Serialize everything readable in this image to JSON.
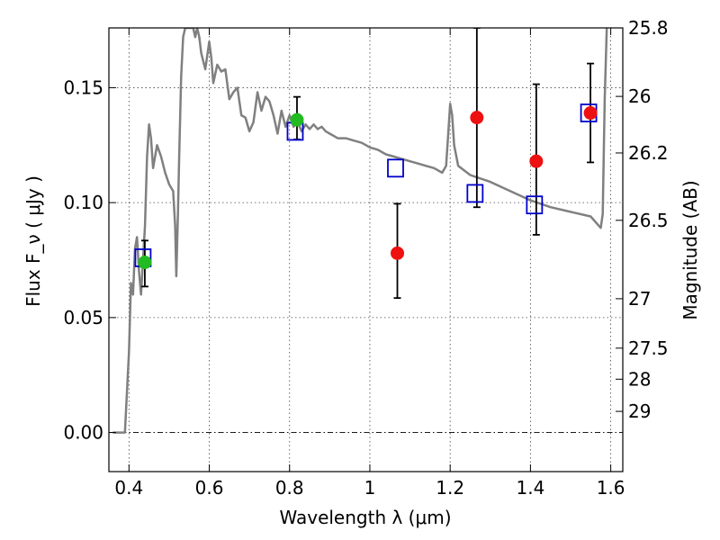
{
  "chart_data": {
    "type": "scatter",
    "xlabel": "Wavelength  λ (μm)",
    "ylabel": "Flux  F_ν  ( μJy )",
    "ylabel_right": "Magnitude (AB)",
    "xlim": [
      0.35,
      1.63
    ],
    "ylim": [
      -0.017,
      0.176
    ],
    "grid": true,
    "legend": "none",
    "x_ticks": [
      0.4,
      0.6,
      0.8,
      1.0,
      1.2,
      1.4,
      1.6
    ],
    "x_tick_labels": [
      "0.4",
      "0.6",
      "0.8",
      "1",
      "1.2",
      "1.4",
      "1.6"
    ],
    "y_ticks": [
      0.0,
      0.05,
      0.1,
      0.15
    ],
    "y_tick_labels": [
      "0.00",
      "0.05",
      "0.10",
      "0.15"
    ],
    "right_ticks": [
      {
        "label": "25.8",
        "flux": 0.176
      },
      {
        "label": "26",
        "flux": 0.1462
      },
      {
        "label": "26.2",
        "flux": 0.1216
      },
      {
        "label": "26.5",
        "flux": 0.0923
      },
      {
        "label": "27",
        "flux": 0.0582
      },
      {
        "label": "27.5",
        "flux": 0.0367
      },
      {
        "label": "28",
        "flux": 0.0232
      },
      {
        "label": "29",
        "flux": 0.0092
      }
    ],
    "series": [
      {
        "kind": "model_sed",
        "color": "#808080",
        "x": [
          0.36,
          0.39,
          0.4,
          0.405,
          0.41,
          0.415,
          0.42,
          0.425,
          0.43,
          0.435,
          0.44,
          0.445,
          0.45,
          0.455,
          0.46,
          0.465,
          0.47,
          0.48,
          0.49,
          0.5,
          0.51,
          0.515,
          0.518,
          0.522,
          0.525,
          0.53,
          0.535,
          0.54,
          0.55,
          0.56,
          0.565,
          0.57,
          0.575,
          0.58,
          0.59,
          0.6,
          0.605,
          0.61,
          0.62,
          0.63,
          0.64,
          0.65,
          0.66,
          0.67,
          0.68,
          0.69,
          0.7,
          0.71,
          0.72,
          0.73,
          0.74,
          0.75,
          0.76,
          0.77,
          0.78,
          0.79,
          0.8,
          0.81,
          0.82,
          0.83,
          0.84,
          0.85,
          0.86,
          0.87,
          0.88,
          0.89,
          0.9,
          0.92,
          0.94,
          0.96,
          0.98,
          1.0,
          1.02,
          1.04,
          1.06,
          1.08,
          1.1,
          1.12,
          1.14,
          1.16,
          1.18,
          1.19,
          1.2,
          1.205,
          1.21,
          1.22,
          1.25,
          1.3,
          1.35,
          1.4,
          1.45,
          1.5,
          1.55,
          1.57,
          1.575,
          1.58,
          1.585,
          1.59
        ],
        "y": [
          0.0,
          0.0,
          0.035,
          0.065,
          0.06,
          0.08,
          0.085,
          0.07,
          0.06,
          0.075,
          0.09,
          0.12,
          0.134,
          0.128,
          0.115,
          0.12,
          0.125,
          0.12,
          0.113,
          0.108,
          0.105,
          0.09,
          0.068,
          0.095,
          0.12,
          0.155,
          0.172,
          0.176,
          0.176,
          0.176,
          0.172,
          0.176,
          0.172,
          0.165,
          0.158,
          0.17,
          0.163,
          0.152,
          0.16,
          0.157,
          0.158,
          0.145,
          0.148,
          0.15,
          0.138,
          0.137,
          0.131,
          0.135,
          0.148,
          0.14,
          0.146,
          0.144,
          0.138,
          0.13,
          0.14,
          0.133,
          0.138,
          0.133,
          0.135,
          0.131,
          0.134,
          0.132,
          0.134,
          0.132,
          0.133,
          0.131,
          0.13,
          0.128,
          0.128,
          0.127,
          0.126,
          0.124,
          0.123,
          0.121,
          0.12,
          0.119,
          0.118,
          0.117,
          0.116,
          0.115,
          0.113,
          0.116,
          0.143,
          0.138,
          0.125,
          0.116,
          0.112,
          0.109,
          0.105,
          0.101,
          0.098,
          0.096,
          0.094,
          0.09,
          0.089,
          0.095,
          0.145,
          0.176
        ]
      },
      {
        "kind": "model_photometry",
        "marker": "open-square",
        "color": "#0000cc",
        "points": [
          {
            "x": 0.435,
            "y": 0.076
          },
          {
            "x": 0.814,
            "y": 0.131
          },
          {
            "x": 1.064,
            "y": 0.115
          },
          {
            "x": 1.262,
            "y": 0.104
          },
          {
            "x": 1.41,
            "y": 0.099
          },
          {
            "x": 1.545,
            "y": 0.139
          }
        ]
      },
      {
        "kind": "observed_optical",
        "marker": "filled-circle",
        "color": "#22bb22",
        "points": [
          {
            "x": 0.435,
            "y": 0.074,
            "err_low": 0.0635,
            "err_high": 0.0835
          },
          {
            "x": 0.814,
            "y": 0.136,
            "err_low": 0.1275,
            "err_high": 0.146
          }
        ]
      },
      {
        "kind": "observed_nir",
        "marker": "filled-circle",
        "color": "#ee1111",
        "points": [
          {
            "x": 1.064,
            "y": 0.078,
            "err_low": 0.0585,
            "err_high": 0.0995
          },
          {
            "x": 1.262,
            "y": 0.137,
            "err_low": 0.098,
            "err_high": 0.176
          },
          {
            "x": 1.41,
            "y": 0.118,
            "err_low": 0.086,
            "err_high": 0.1515
          },
          {
            "x": 1.545,
            "y": 0.139,
            "err_low": 0.1175,
            "err_high": 0.1605
          }
        ]
      }
    ]
  }
}
